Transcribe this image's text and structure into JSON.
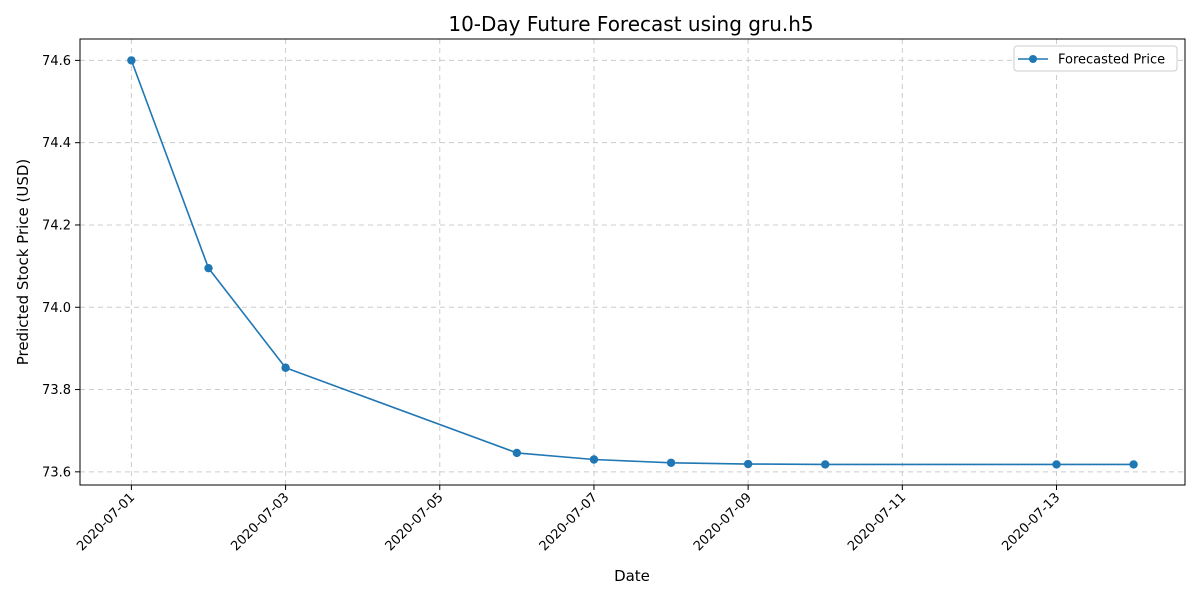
{
  "chart_data": {
    "type": "line",
    "title": "10-Day Future Forecast using gru.h5",
    "xlabel": "Date",
    "ylabel": "Predicted Stock Price (USD)",
    "x_range": [
      "2020-06-30T08:00",
      "2020-07-14T16:00"
    ],
    "ylim": [
      73.568,
      74.652
    ],
    "x_ticks": [
      "2020-07-01",
      "2020-07-03",
      "2020-07-05",
      "2020-07-07",
      "2020-07-09",
      "2020-07-11",
      "2020-07-13"
    ],
    "y_ticks": [
      "73.6",
      "73.8",
      "74.0",
      "74.2",
      "74.4",
      "74.6"
    ],
    "grid": true,
    "legend_position": "top-right",
    "series": [
      {
        "name": "Forecasted Price",
        "color": "#1f77b4",
        "marker": "circle",
        "x": [
          "2020-07-01",
          "2020-07-02",
          "2020-07-03",
          "2020-07-06",
          "2020-07-07",
          "2020-07-08",
          "2020-07-09",
          "2020-07-10",
          "2020-07-13",
          "2020-07-14"
        ],
        "y": [
          74.6,
          74.095,
          73.853,
          73.646,
          73.63,
          73.622,
          73.619,
          73.618,
          73.618,
          73.618
        ]
      }
    ]
  }
}
